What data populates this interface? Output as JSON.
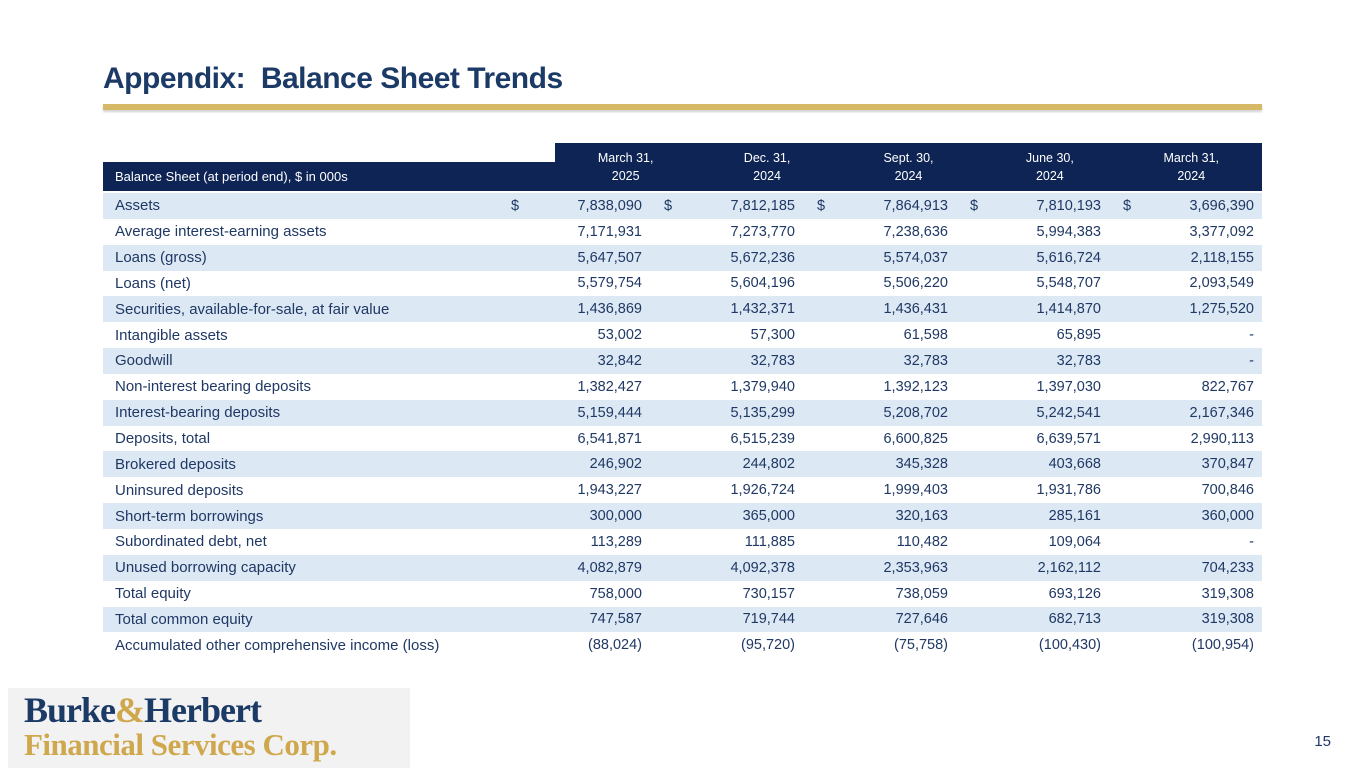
{
  "slide": {
    "title": "Appendix:  Balance Sheet Trends",
    "page_number": "15"
  },
  "logo": {
    "name_part1": "Burke",
    "name_amp": "&",
    "name_part2": "Herbert",
    "line2": "Financial Services Corp."
  },
  "colors": {
    "header_navy": "#0E2455",
    "table_text_navy": "#1F3864",
    "alt_row_blue": "#DCE8F4",
    "accent_gold": "#D6B967",
    "logo_gold": "#CFA84E"
  },
  "table": {
    "header_label": "Balance Sheet (at period end), $ in 000s",
    "columns": [
      {
        "line1": "March 31,",
        "line2": "2025"
      },
      {
        "line1": "Dec. 31,",
        "line2": "2024"
      },
      {
        "line1": "Sept. 30,",
        "line2": "2024"
      },
      {
        "line1": "June 30,",
        "line2": "2024"
      },
      {
        "line1": "March 31,",
        "line2": "2024"
      }
    ],
    "dollar_sign": "$",
    "rows": [
      {
        "label": "Assets",
        "dollar": true,
        "values": [
          "7,838,090",
          "7,812,185",
          "7,864,913",
          "7,810,193",
          "3,696,390"
        ]
      },
      {
        "label": "Average interest-earning assets",
        "dollar": false,
        "values": [
          "7,171,931",
          "7,273,770",
          "7,238,636",
          "5,994,383",
          "3,377,092"
        ]
      },
      {
        "label": "Loans (gross)",
        "dollar": false,
        "values": [
          "5,647,507",
          "5,672,236",
          "5,574,037",
          "5,616,724",
          "2,118,155"
        ]
      },
      {
        "label": "Loans (net)",
        "dollar": false,
        "values": [
          "5,579,754",
          "5,604,196",
          "5,506,220",
          "5,548,707",
          "2,093,549"
        ]
      },
      {
        "label": "Securities, available-for-sale, at fair value",
        "dollar": false,
        "values": [
          "1,436,869",
          "1,432,371",
          "1,436,431",
          "1,414,870",
          "1,275,520"
        ]
      },
      {
        "label": "Intangible assets",
        "dollar": false,
        "values": [
          "53,002",
          "57,300",
          "61,598",
          "65,895",
          "-"
        ]
      },
      {
        "label": "Goodwill",
        "dollar": false,
        "values": [
          "32,842",
          "32,783",
          "32,783",
          "32,783",
          "-"
        ]
      },
      {
        "label": "Non-interest bearing deposits",
        "dollar": false,
        "values": [
          "1,382,427",
          "1,379,940",
          "1,392,123",
          "1,397,030",
          "822,767"
        ]
      },
      {
        "label": "Interest-bearing deposits",
        "dollar": false,
        "values": [
          "5,159,444",
          "5,135,299",
          "5,208,702",
          "5,242,541",
          "2,167,346"
        ]
      },
      {
        "label": "Deposits, total",
        "dollar": false,
        "values": [
          "6,541,871",
          "6,515,239",
          "6,600,825",
          "6,639,571",
          "2,990,113"
        ]
      },
      {
        "label": "Brokered deposits",
        "dollar": false,
        "values": [
          "246,902",
          "244,802",
          "345,328",
          "403,668",
          "370,847"
        ]
      },
      {
        "label": "Uninsured deposits",
        "dollar": false,
        "values": [
          "1,943,227",
          "1,926,724",
          "1,999,403",
          "1,931,786",
          "700,846"
        ]
      },
      {
        "label": "Short-term borrowings",
        "dollar": false,
        "values": [
          "300,000",
          "365,000",
          "320,163",
          "285,161",
          "360,000"
        ]
      },
      {
        "label": "Subordinated debt, net",
        "dollar": false,
        "values": [
          "113,289",
          "111,885",
          "110,482",
          "109,064",
          "-"
        ]
      },
      {
        "label": "Unused borrowing capacity",
        "dollar": false,
        "values": [
          "4,082,879",
          "4,092,378",
          "2,353,963",
          "2,162,112",
          "704,233"
        ]
      },
      {
        "label": "Total equity",
        "dollar": false,
        "values": [
          "758,000",
          "730,157",
          "738,059",
          "693,126",
          "319,308"
        ]
      },
      {
        "label": "Total common equity",
        "dollar": false,
        "values": [
          "747,587",
          "719,744",
          "727,646",
          "682,713",
          "319,308"
        ]
      },
      {
        "label": "Accumulated other comprehensive income (loss)",
        "dollar": false,
        "values": [
          "(88,024)",
          "(95,720)",
          "(75,758)",
          "(100,430)",
          "(100,954)"
        ]
      }
    ]
  }
}
